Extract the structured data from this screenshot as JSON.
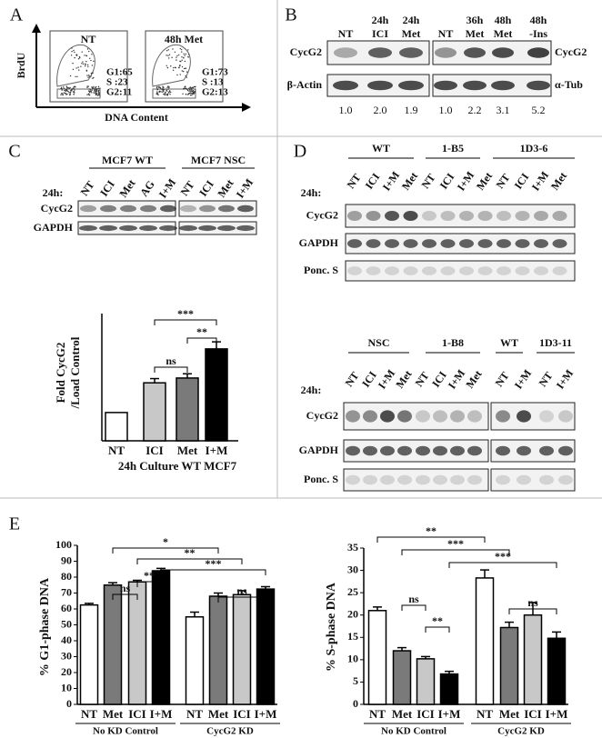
{
  "panel_a": {
    "label": "A",
    "y_axis": "BrdU",
    "x_axis": "DNA Content",
    "plots": [
      {
        "title": "NT",
        "stats": [
          "G1:65",
          "S :23",
          "G2:11"
        ]
      },
      {
        "title": "48h Met",
        "stats": [
          "G1:73",
          "S :13",
          "G2:13"
        ]
      }
    ]
  },
  "panel_b": {
    "label": "B",
    "lanes": [
      [
        "NT"
      ],
      [
        "24h",
        "ICI"
      ],
      [
        "24h",
        "Met"
      ],
      [
        "NT"
      ],
      [
        "36h",
        "Met"
      ],
      [
        "48h",
        "Met"
      ],
      [
        "48h",
        "-Ins"
      ]
    ],
    "left_rows": [
      "CycG2",
      "β-Actin"
    ],
    "right_rows": [
      "CycG2",
      "α-Tub"
    ],
    "ratios": [
      "1.0",
      "2.0",
      "1.9",
      "1.0",
      "2.2",
      "3.1",
      "5.2"
    ]
  },
  "panel_c": {
    "label": "C",
    "groups": [
      "MCF7 WT",
      "MCF7 NSC"
    ],
    "time": "24h:",
    "lanes": [
      "NT",
      "ICI",
      "Met",
      "AG",
      "I+M",
      "NT",
      "ICI",
      "Met",
      "I+M"
    ],
    "rows": [
      "CycG2",
      "GAPDH"
    ]
  },
  "panel_d": {
    "label": "D",
    "blots": [
      {
        "groups": [
          "WT",
          "1-B5",
          "1D3-6"
        ],
        "time": "24h:",
        "lanes": [
          "NT",
          "ICI",
          "I+M",
          "Met",
          "NT",
          "ICI",
          "I+M",
          "Met",
          "NT",
          "ICI",
          "I+M",
          "Met"
        ],
        "rows": [
          "CycG2",
          "GAPDH",
          "Ponc. S"
        ]
      },
      {
        "groups": [
          "NSC",
          "1-B8",
          "WT",
          "1D3-11"
        ],
        "time": "24h:",
        "lanes": [
          "NT",
          "ICI",
          "I+M",
          "Met",
          "NT",
          "ICI",
          "I+M",
          "Met",
          "NT",
          "I+M",
          "NT",
          "I+M"
        ],
        "rows": [
          "CycG2",
          "GAPDH",
          "Ponc. S"
        ]
      }
    ]
  },
  "panel_e": {
    "label": "E"
  },
  "chart_data": [
    {
      "type": "bar",
      "categories": [
        "NT",
        "ICI",
        "Met",
        "I+M"
      ],
      "values": [
        1,
        2.05,
        2.22,
        3.25
      ],
      "errors": [
        0,
        0.15,
        0.15,
        0.25
      ],
      "colors": [
        "#ffffff",
        "#c8c8c8",
        "#7a7a7a",
        "#000000"
      ],
      "ylim": [
        0,
        4.5
      ],
      "ylabel": [
        "Fold  CycG2",
        "/Load Control"
      ],
      "xlabel": "24h Culture WT MCF7",
      "annotations": [
        "***",
        "**",
        "ns"
      ]
    },
    {
      "type": "bar",
      "categories": [
        "NT",
        "Met",
        "ICI",
        "I+M",
        "NT",
        "Met",
        "ICI",
        "I+M"
      ],
      "groups": [
        "No KD Control",
        "CycG2 KD"
      ],
      "values": [
        62.5,
        75,
        77,
        84,
        55,
        68,
        69,
        72.5
      ],
      "errors": [
        1,
        1.5,
        1,
        1.5,
        3,
        2,
        2.5,
        1.5
      ],
      "colors": [
        "#ffffff",
        "#7a7a7a",
        "#c8c8c8",
        "#000000",
        "#ffffff",
        "#7a7a7a",
        "#c8c8c8",
        "#000000"
      ],
      "ylim": [
        0,
        100
      ],
      "yticks": [
        0,
        10,
        20,
        30,
        40,
        50,
        60,
        70,
        80,
        90,
        100
      ],
      "ylabel": "% G1-phase DNA",
      "annotations": [
        "*",
        "**",
        "***",
        "ns",
        "**",
        "ns"
      ]
    },
    {
      "type": "bar",
      "categories": [
        "NT",
        "Met",
        "ICI",
        "I+M",
        "NT",
        "Met",
        "ICI",
        "I+M"
      ],
      "groups": [
        "No KD Control",
        "CycG2 KD"
      ],
      "values": [
        21,
        12,
        10.2,
        6.8,
        28.3,
        17.2,
        20,
        14.8
      ],
      "errors": [
        0.8,
        0.7,
        0.5,
        0.6,
        1.8,
        1.2,
        2.8,
        1.4
      ],
      "colors": [
        "#ffffff",
        "#7a7a7a",
        "#c8c8c8",
        "#000000",
        "#ffffff",
        "#7a7a7a",
        "#c8c8c8",
        "#000000"
      ],
      "ylim": [
        0,
        35
      ],
      "yticks": [
        0,
        5,
        10,
        15,
        20,
        25,
        30,
        35
      ],
      "ylabel": "% S-phase DNA",
      "annotations": [
        "**",
        "***",
        "***",
        "ns",
        "**",
        "ns"
      ]
    }
  ]
}
